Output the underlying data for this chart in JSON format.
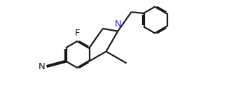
{
  "background": "#ffffff",
  "bond_color": "#1a1a1a",
  "N_color": "#3333cc",
  "line_width": 1.6,
  "dbo": 0.012,
  "figsize": [
    3.57,
    1.56
  ],
  "dpi": 100,
  "xlim": [
    -0.5,
    3.8
  ],
  "ylim": [
    -1.0,
    1.4
  ]
}
